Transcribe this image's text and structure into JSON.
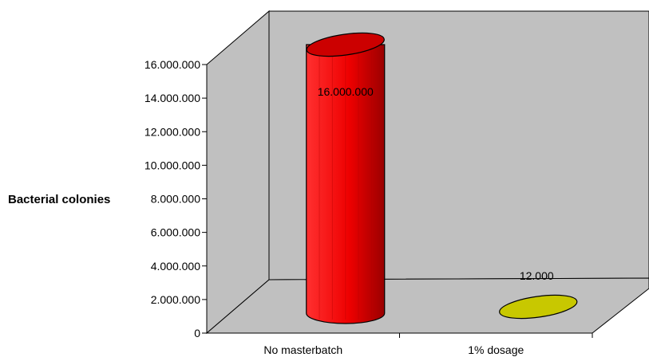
{
  "chart_data": {
    "type": "bar",
    "style": "3d-cylinder",
    "title": "",
    "xlabel": "",
    "ylabel": "Bacterial colonies",
    "categories": [
      "No masterbatch",
      "1% dosage"
    ],
    "values": [
      16000000,
      12000
    ],
    "data_labels": [
      "16.000.000",
      "12.000"
    ],
    "ylim": [
      0,
      16000000
    ],
    "yticks": [
      0,
      2000000,
      4000000,
      6000000,
      8000000,
      10000000,
      12000000,
      14000000,
      16000000
    ],
    "ytick_labels": [
      "0",
      "2.000.000",
      "4.000.000",
      "6.000.000",
      "8.000.000",
      "10.000.000",
      "12.000.000",
      "14.000.000",
      "16.000.000"
    ],
    "grid": false,
    "legend": "none",
    "colors": {
      "bars": [
        "#ff0000",
        "#c8c800"
      ],
      "walls": "#c0c0c0"
    }
  }
}
